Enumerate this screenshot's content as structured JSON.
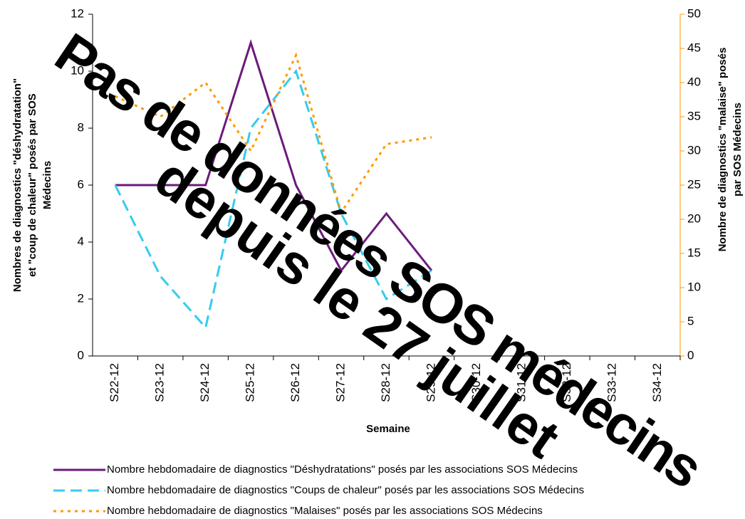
{
  "chart_data": {
    "type": "line",
    "categories": [
      "S22-12",
      "S23-12",
      "S24-12",
      "S25-12",
      "S26-12",
      "S27-12",
      "S28-12",
      "S29-12",
      "S30-12",
      "S31-12",
      "S32-12",
      "S33-12",
      "S34-12"
    ],
    "series": [
      {
        "name": "Nombre hebdomadaire de diagnostics \"Déshydratations\" posés par les associations SOS Médecins",
        "color": "#6b1a7b",
        "line_style": "solid",
        "values": [
          6,
          6,
          6,
          11,
          6,
          3,
          5,
          3,
          null,
          null,
          null,
          null,
          null
        ]
      },
      {
        "name": "Nombre hebdomadaire de diagnostics \"Coups de chaleur\" posés par les associations SOS Médecins",
        "color": "#33ccee",
        "line_style": "dashed",
        "values": [
          6,
          2.8,
          1,
          8,
          10,
          5,
          2,
          3,
          null,
          null,
          null,
          null,
          null
        ]
      },
      {
        "name": "Nombre hebdomadaire de diagnostics \"Malaises\" posés par les associations SOS Médecins",
        "color": "#ff9900",
        "line_style": "dotted",
        "axis": "y2",
        "values": [
          38,
          35,
          40,
          30,
          44,
          21,
          31,
          32,
          null,
          null,
          null,
          null,
          null
        ]
      }
    ],
    "ylim": [
      0,
      12
    ],
    "yticks": [
      0,
      2,
      4,
      6,
      8,
      10,
      12
    ],
    "y2lim": [
      0,
      50
    ],
    "y2ticks": [
      0,
      5,
      10,
      15,
      20,
      25,
      30,
      35,
      40,
      45,
      50
    ],
    "x_label": "Semaine",
    "y_label": [
      "Nombres de diagnostics \"déshydratation\"",
      "et \"coup de chaleur\" posés par SOS",
      "Médecins"
    ],
    "y2_label": [
      "Nombre de diagnostics \"malaise\" posés",
      "par SOS Médecins"
    ],
    "annotation": [
      "Pas de données SOS médecins",
      "depuis le 27 juillet"
    ],
    "annotation_color": "#ff0000"
  }
}
